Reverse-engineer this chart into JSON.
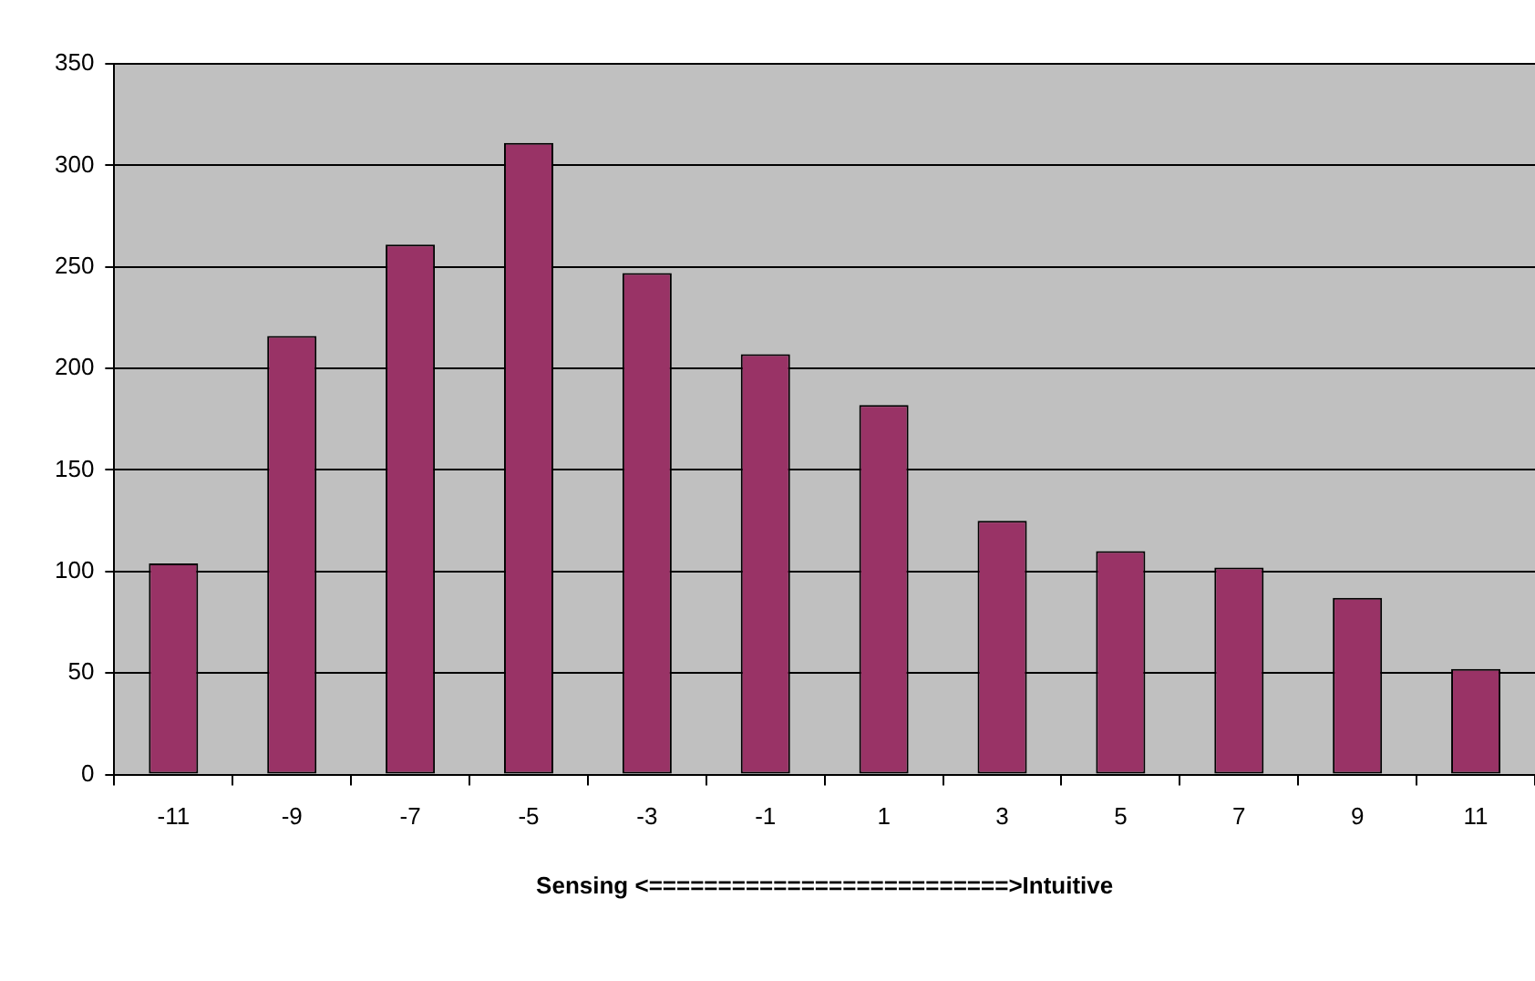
{
  "chart_data": {
    "type": "bar",
    "xlabel": "Sensing <==========================>Intuitive",
    "categories": [
      "-11",
      "-9",
      "-7",
      "-5",
      "-3",
      "-1",
      "1",
      "3",
      "5",
      "7",
      "9",
      "11"
    ],
    "values": [
      104,
      216,
      261,
      311,
      247,
      207,
      182,
      125,
      110,
      102,
      87,
      52
    ],
    "color": "#993366",
    "ylim": [
      0,
      350
    ],
    "yticks": [
      0,
      50,
      100,
      150,
      200,
      250,
      300,
      350
    ],
    "grid": "y",
    "legend": false
  }
}
